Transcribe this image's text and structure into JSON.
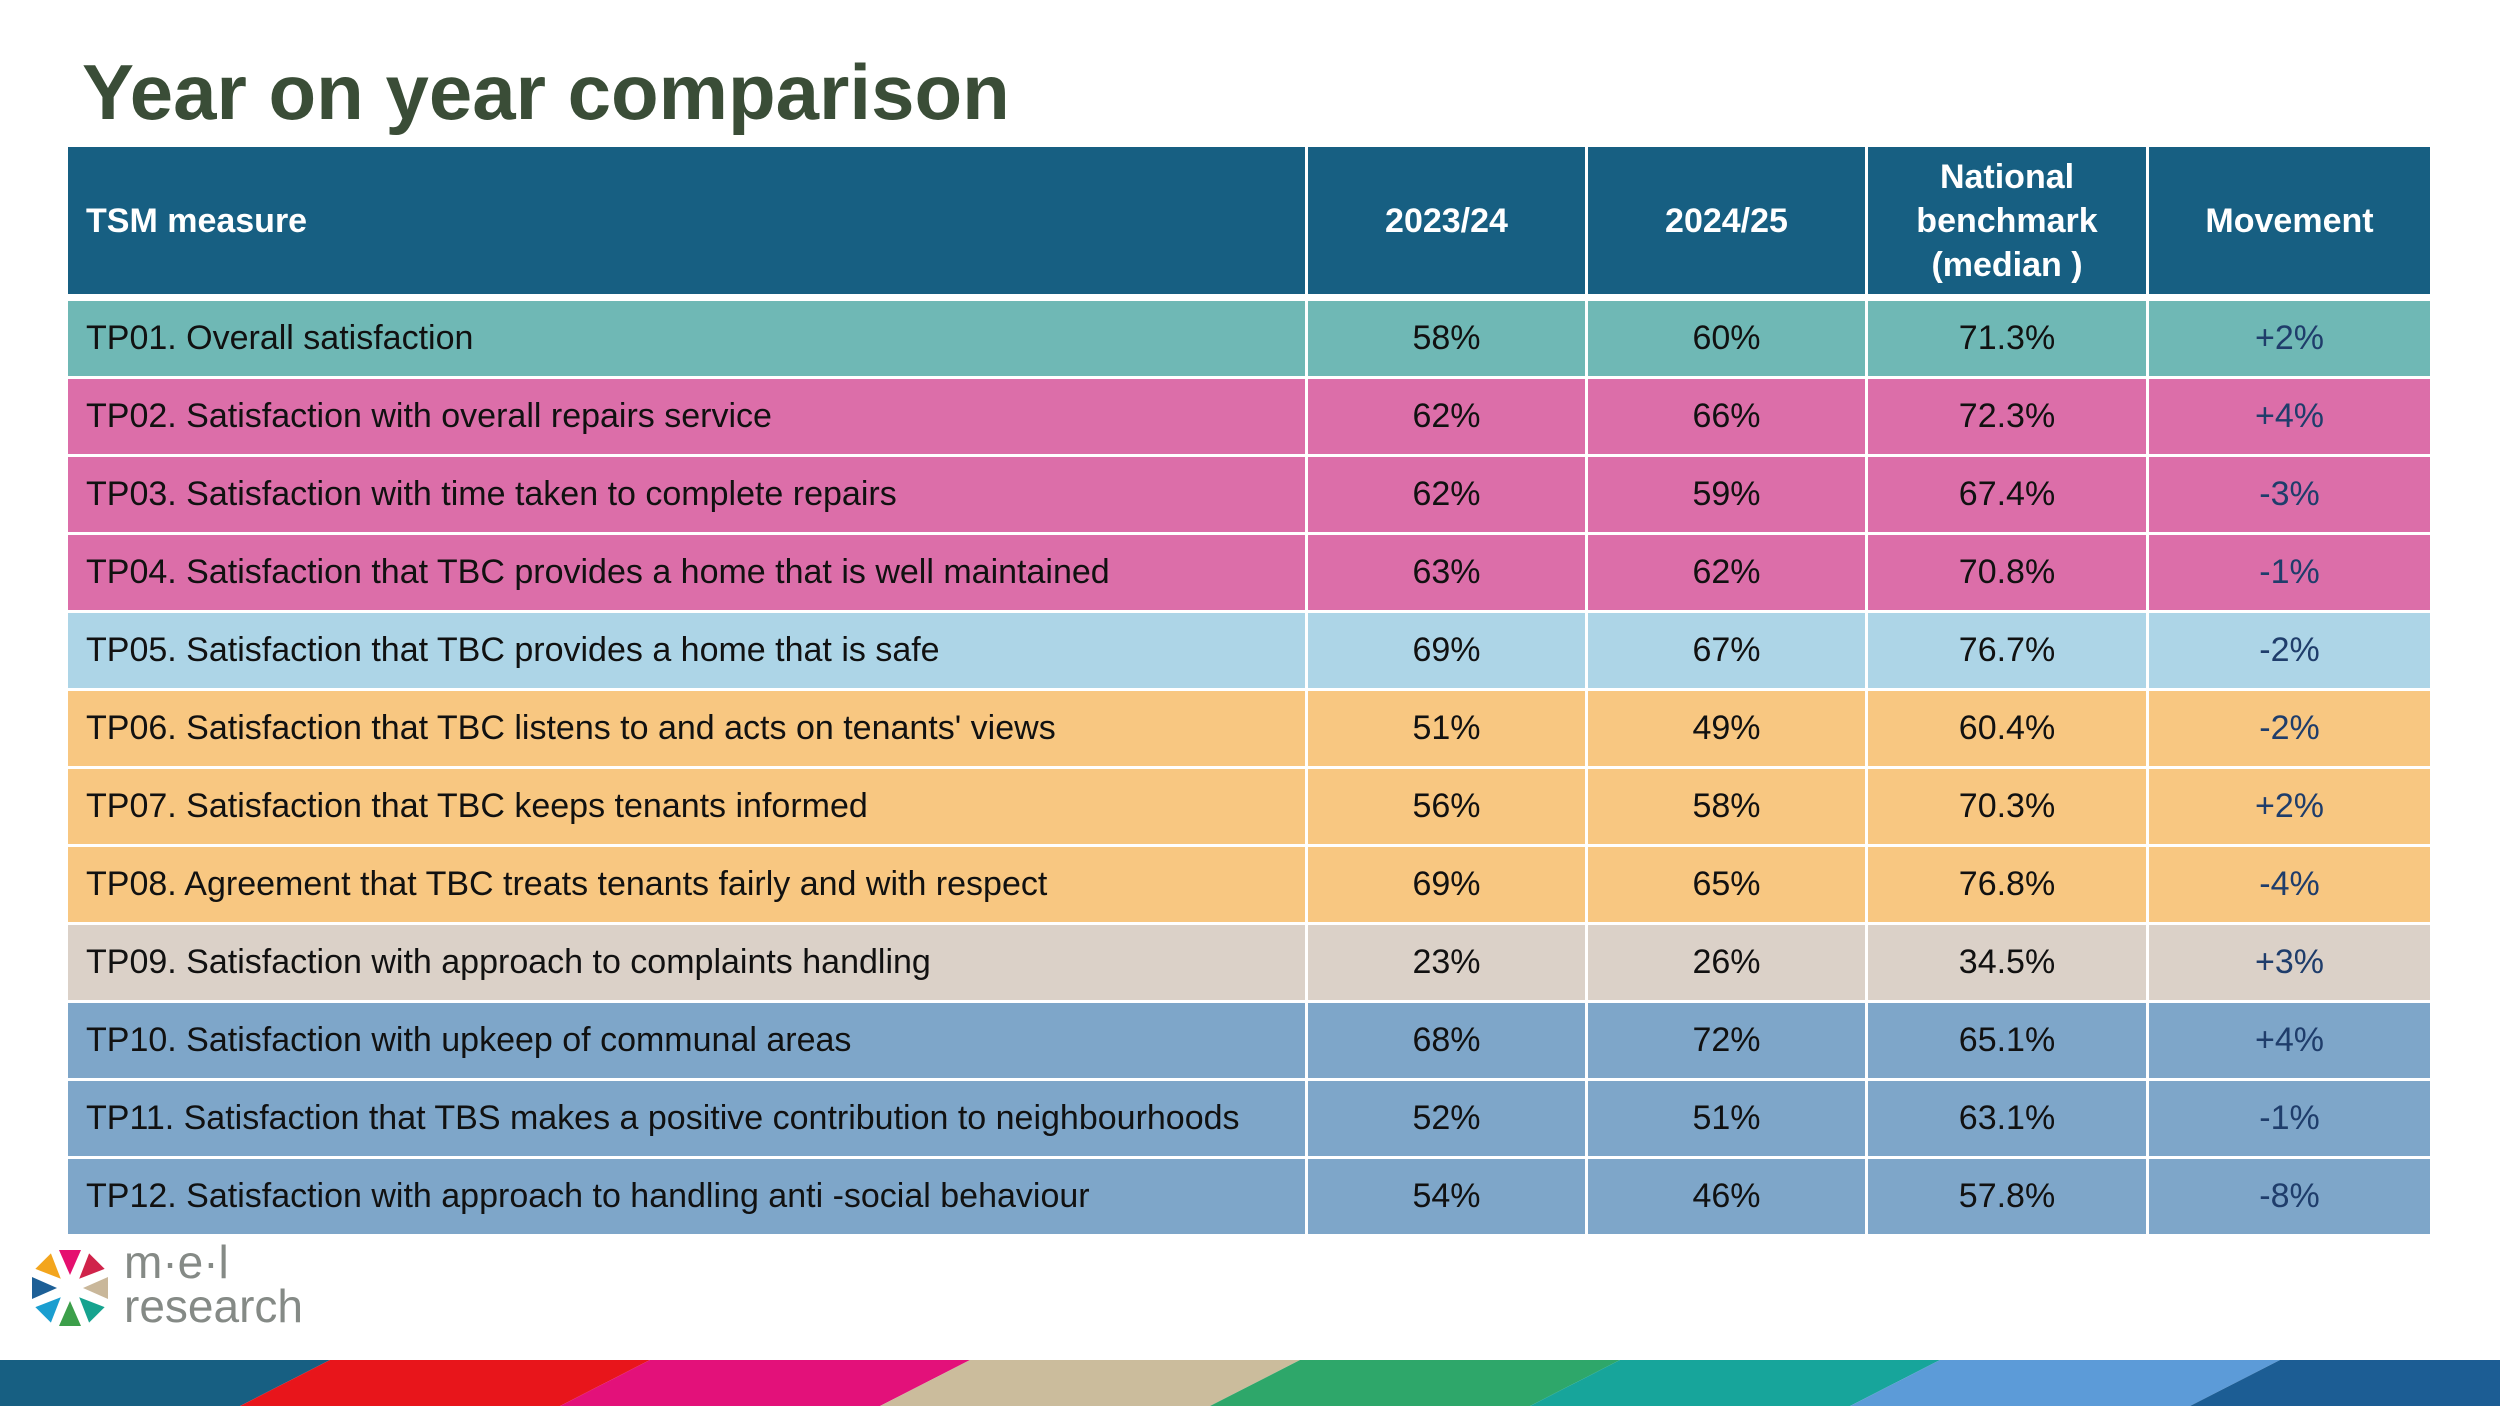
{
  "title": "Year on year comparison",
  "table": {
    "headers": {
      "measure": "TSM measure",
      "y2023": "2023/24",
      "y2024": "2024/25",
      "benchmark_line1": "National",
      "benchmark_line2": "benchmark",
      "benchmark_line3": "(median )",
      "movement": "Movement"
    },
    "rows": [
      {
        "measure": "TP01. Overall satisfaction",
        "y2023": "58%",
        "y2024": "60%",
        "benchmark": "71.3%",
        "movement": "+2%",
        "group": "teal"
      },
      {
        "measure": "TP02. Satisfaction with overall repairs service",
        "y2023": "62%",
        "y2024": "66%",
        "benchmark": "72.3%",
        "movement": "+4%",
        "group": "pink"
      },
      {
        "measure": "TP03. Satisfaction with time taken to complete repairs",
        "y2023": "62%",
        "y2024": "59%",
        "benchmark": "67.4%",
        "movement": "-3%",
        "group": "pink"
      },
      {
        "measure": "TP04. Satisfaction that TBC provides a home that is well maintained",
        "y2023": "63%",
        "y2024": "62%",
        "benchmark": "70.8%",
        "movement": "-1%",
        "group": "pink"
      },
      {
        "measure": "TP05. Satisfaction that TBC provides a home that is safe",
        "y2023": "69%",
        "y2024": "67%",
        "benchmark": "76.7%",
        "movement": "-2%",
        "group": "lightblue"
      },
      {
        "measure": "TP06. Satisfaction that TBC listens to and acts on tenants' views",
        "y2023": "51%",
        "y2024": "49%",
        "benchmark": "60.4%",
        "movement": "-2%",
        "group": "orange"
      },
      {
        "measure": "TP07. Satisfaction that TBC keeps tenants informed",
        "y2023": "56%",
        "y2024": "58%",
        "benchmark": "70.3%",
        "movement": "+2%",
        "group": "orange"
      },
      {
        "measure": "TP08. Agreement that TBC treats tenants fairly and with respect",
        "y2023": "69%",
        "y2024": "65%",
        "benchmark": "76.8%",
        "movement": "-4%",
        "group": "orange"
      },
      {
        "measure": "TP09. Satisfaction with approach to complaints handling",
        "y2023": "23%",
        "y2024": "26%",
        "benchmark": "34.5%",
        "movement": "+3%",
        "group": "beige"
      },
      {
        "measure": "TP10. Satisfaction with upkeep of communal areas",
        "y2023": "68%",
        "y2024": "72%",
        "benchmark": "65.1%",
        "movement": "+4%",
        "group": "blue"
      },
      {
        "measure": "TP11. Satisfaction that TBS makes a positive contribution to neighbourhoods",
        "y2023": "52%",
        "y2024": "51%",
        "benchmark": "63.1%",
        "movement": "-1%",
        "group": "blue"
      },
      {
        "measure": "TP12. Satisfaction with approach to handling anti  -social behaviour",
        "y2023": "54%",
        "y2024": "46%",
        "benchmark": "57.8%",
        "movement": "-8%",
        "group": "blue"
      }
    ]
  },
  "logo": {
    "line1": "m·e·l",
    "line2": "research"
  },
  "colors": {
    "header": "#175f82",
    "title": "#3a4d37",
    "teal": "#6fb8b5",
    "pink": "#dc6ea9",
    "lightblue": "#add5e7",
    "orange": "#f8c781",
    "beige": "#dbd1c8",
    "blue": "#7ea6c9"
  }
}
